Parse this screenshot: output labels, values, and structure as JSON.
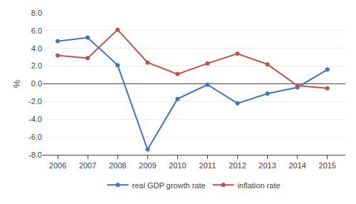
{
  "chart_data": {
    "type": "line",
    "x": [
      2006,
      2007,
      2008,
      2009,
      2010,
      2011,
      2012,
      2013,
      2014,
      2015
    ],
    "series": [
      {
        "name": "real GDP growth rate",
        "color": "#4472C4",
        "marker": "circle",
        "line_style": "solid",
        "values": [
          4.8,
          5.2,
          2.1,
          -7.4,
          -1.7,
          -0.1,
          -2.2,
          -1.1,
          -0.4,
          1.6
        ]
      },
      {
        "name": "inflation rate",
        "color": "#C0504D",
        "marker": "circle",
        "line_style": "solid",
        "values": [
          3.2,
          2.9,
          6.1,
          2.4,
          1.1,
          2.3,
          3.4,
          2.2,
          -0.2,
          -0.5
        ]
      }
    ],
    "y_label": "%",
    "xlim": [
      2005.5,
      2015.6
    ],
    "xticks": [
      2006,
      2007,
      2008,
      2009,
      2010,
      2011,
      2012,
      2013,
      2014,
      2015
    ],
    "ylim": [
      -8.0,
      8.0
    ],
    "yticks": [
      {
        "value": -8.0,
        "label": "-8.0"
      },
      {
        "value": -6.0,
        "label": "-6.0"
      },
      {
        "value": -4.0,
        "label": "-4.0"
      },
      {
        "value": -2.0,
        "label": "-2.0"
      },
      {
        "value": 0.0,
        "label": "0.0"
      },
      {
        "value": 2.0,
        "label": "2.0"
      },
      {
        "value": 4.0,
        "label": "4.0"
      },
      {
        "value": 6.0,
        "label": "6.0"
      },
      {
        "value": 8.0,
        "label": "8.0"
      }
    ],
    "grid": true,
    "legend": "bottom"
  }
}
